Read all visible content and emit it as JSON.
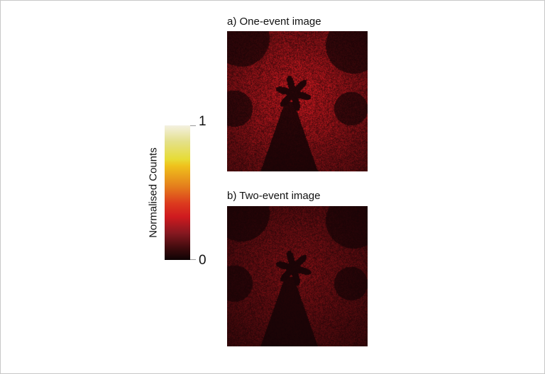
{
  "panels": [
    {
      "caption": "a) One-event image",
      "intensity": 0.75
    },
    {
      "caption": "b) Two-event image",
      "intensity": 0.45
    }
  ],
  "colorbar": {
    "label": "Normalised Counts",
    "max_label": "1",
    "min_label": "0",
    "colors": [
      "#f4f1e2",
      "#e7dc36",
      "#e5801c",
      "#cf1a1f",
      "#3a0a0c",
      "#0e0304"
    ]
  }
}
